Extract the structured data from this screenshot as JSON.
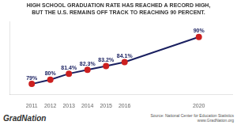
{
  "chart_data": {
    "type": "line",
    "title": "HIGH SCHOOL GRADUATION RATE HAS REACHED A RECORD HIGH,\nBUT THE U.S. REMAINS OFF TRACK TO REACHING 90 PERCENT.",
    "x": [
      2011,
      2012,
      2013,
      2014,
      2015,
      2016,
      2020
    ],
    "values": [
      79,
      80,
      81.4,
      82.3,
      83.2,
      84.1,
      90
    ],
    "value_labels": [
      "79%",
      "80%",
      "81.4%",
      "82.3%",
      "83.2%",
      "84.1%",
      "90%"
    ],
    "data_labels": true,
    "color": "#1a2060",
    "colors": [
      "#cc2020",
      "#cc2020",
      "#cc2020",
      "#cc2020",
      "#cc2020",
      "#cc2020",
      "#cc2020"
    ],
    "marker": "circle",
    "xlim": [
      2009.8,
      2021.8
    ],
    "xticks": [
      2011,
      2012,
      2013,
      2014,
      2015,
      2016,
      2020
    ],
    "ylim": [
      76.5,
      93.5
    ],
    "tick_labels": "x",
    "grid": false,
    "annotations": [
      "Grad",
      "Nation",
      "Source: National Center for Education Statistics\nwww.GradNation.org"
    ]
  }
}
